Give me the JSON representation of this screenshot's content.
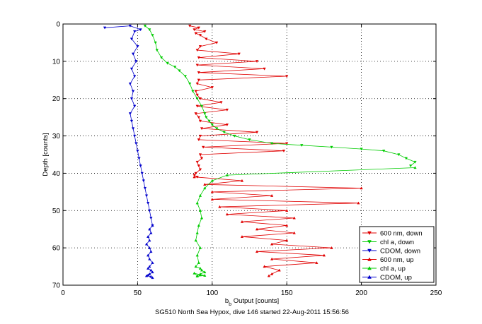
{
  "chart_data": {
    "type": "line",
    "title": "",
    "caption": "SG510 North Sea Hypox, dive 146 started 22-Aug-2011 15:56:56",
    "xlabel_main": "b",
    "xlabel_sub": "b",
    "xlabel_rest": " Output [counts]",
    "ylabel": "Depth [counts]",
    "xlim": [
      0,
      250
    ],
    "ylim": [
      0,
      70
    ],
    "y_reversed": true,
    "grid": true,
    "legend_position": "bottom-right",
    "xticks": [
      0,
      50,
      100,
      150,
      200,
      250
    ],
    "yticks": [
      0,
      10,
      20,
      30,
      40,
      50,
      60,
      70
    ],
    "xtick_labels": [
      "0",
      "50",
      "100",
      "150",
      "200",
      "250"
    ],
    "ytick_labels": [
      "0",
      "10",
      "20",
      "30",
      "40",
      "50",
      "60",
      "70"
    ],
    "series": [
      {
        "name": "600 nm, down",
        "color": "#e00000",
        "marker": "triangle-down",
        "x": [
          85,
          91,
          88,
          95,
          89,
          92,
          96,
          103,
          92,
          90,
          118,
          91,
          130,
          90,
          135,
          91,
          150,
          91,
          90,
          100,
          89,
          90,
          92,
          106,
          90,
          110,
          89,
          91,
          92,
          110,
          93,
          130,
          92,
          91,
          150,
          94,
          148,
          92,
          93,
          90,
          91,
          92,
          89,
          88,
          90
        ],
        "y": [
          0.5,
          1,
          1.5,
          2,
          2.5,
          3,
          4,
          5,
          6,
          7,
          8,
          9,
          10,
          11,
          12,
          13,
          14,
          15,
          16,
          17,
          18,
          19,
          20,
          21,
          22,
          23,
          24,
          25,
          26,
          27,
          28,
          29,
          30,
          31,
          32,
          33,
          34,
          35,
          36,
          37,
          38,
          39,
          40,
          40.5,
          41
        ]
      },
      {
        "name": "chl a, down",
        "color": "#00cc00",
        "marker": "triangle-down",
        "x": [
          55,
          58,
          60,
          62,
          63,
          66,
          70,
          75,
          78,
          82,
          85,
          87,
          90,
          93,
          95,
          96,
          98,
          100,
          103,
          108,
          115,
          125,
          140,
          160,
          180,
          200,
          215,
          225,
          230,
          236,
          233
        ],
        "y": [
          0.5,
          1.5,
          3,
          5,
          7,
          9,
          10.5,
          11.5,
          12.5,
          14,
          16,
          18,
          20,
          22,
          24,
          25,
          26,
          27,
          28,
          29,
          30,
          31,
          32,
          32.5,
          33,
          33.5,
          34,
          35,
          36,
          37,
          38
        ]
      },
      {
        "name": "CDOM, down",
        "color": "#0000cc",
        "marker": "triangle-down",
        "x": [
          28,
          45,
          52,
          48,
          46,
          50,
          47,
          49,
          46,
          48,
          45,
          47,
          46,
          48,
          45,
          46,
          47,
          48,
          49,
          50,
          51,
          52,
          53,
          54,
          55,
          56,
          57,
          58,
          59,
          60
        ],
        "y": [
          1,
          0.5,
          1.5,
          2,
          4,
          6,
          8,
          10,
          12,
          14,
          16,
          18,
          20,
          22,
          24,
          26,
          28,
          30,
          32,
          34,
          36,
          38,
          40,
          42,
          44,
          46,
          48,
          50,
          52,
          54
        ]
      },
      {
        "name": "600 nm, up",
        "color": "#e00000",
        "marker": "triangle-up",
        "x": [
          88,
          120,
          95,
          200,
          100,
          140,
          100,
          198,
          105,
          150,
          110,
          155,
          120,
          150,
          130,
          155,
          120,
          150,
          140,
          180,
          130,
          175,
          140,
          170,
          135,
          145,
          140,
          138
        ],
        "y": [
          41,
          42,
          43,
          44,
          45,
          46,
          47,
          48,
          49,
          50,
          51,
          52,
          53,
          54,
          55,
          56,
          57,
          58,
          59,
          60,
          61,
          62,
          63,
          64,
          65,
          66,
          67,
          67.5
        ]
      },
      {
        "name": "chl a, up",
        "color": "#00cc00",
        "marker": "triangle-up",
        "x": [
          236,
          110,
          100,
          95,
          92,
          90,
          92,
          93,
          91,
          90,
          89,
          92,
          90,
          91,
          89,
          92,
          93,
          95,
          92,
          90,
          88,
          92,
          95,
          90
        ],
        "y": [
          38.5,
          40.5,
          42,
          44,
          46,
          48,
          50,
          52,
          54,
          56,
          58,
          60,
          62,
          64,
          65,
          65.5,
          66,
          66.5,
          67,
          67.5,
          66.8,
          67.2,
          67.4,
          67.6
        ]
      },
      {
        "name": "CDOM, up",
        "color": "#0000cc",
        "marker": "triangle-up",
        "x": [
          60,
          58,
          59,
          57,
          58,
          56,
          58,
          59,
          57,
          58,
          60,
          58,
          57,
          59,
          60,
          58,
          57,
          56,
          59,
          60
        ],
        "y": [
          54,
          55,
          56,
          57,
          58,
          59,
          60,
          61,
          62,
          63,
          64,
          65,
          65.5,
          66,
          66.5,
          67,
          67.3,
          67.5,
          67.7,
          68
        ]
      }
    ]
  }
}
